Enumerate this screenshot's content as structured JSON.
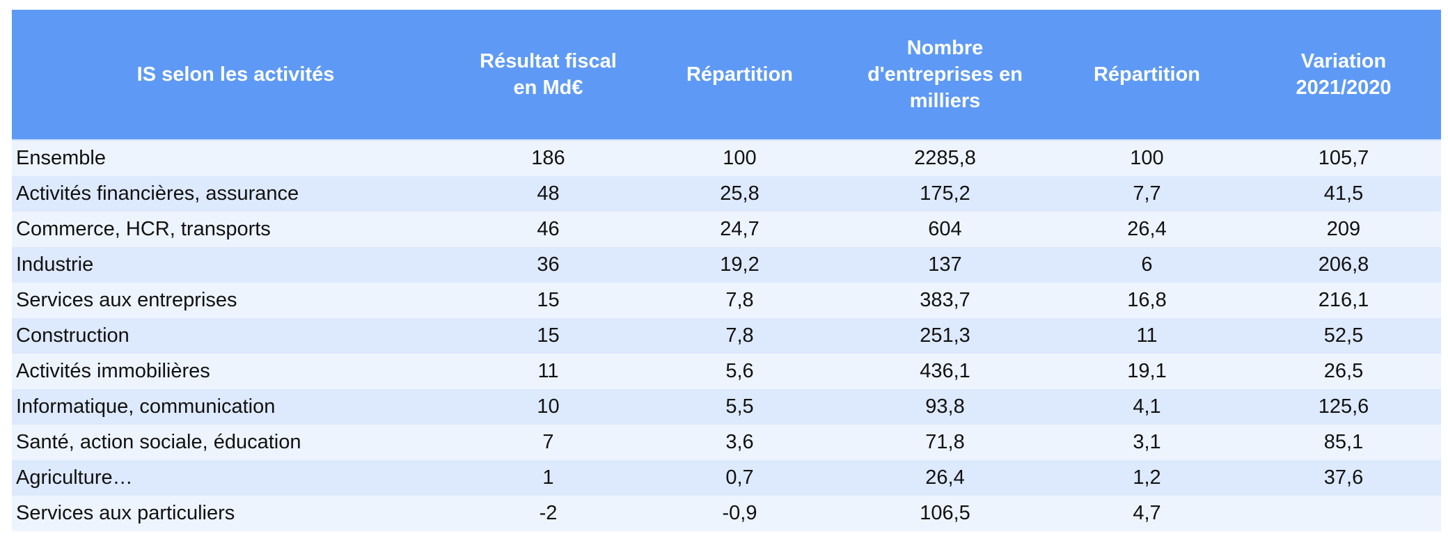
{
  "table": {
    "headers": [
      "IS selon les activités",
      "Résultat fiscal en Md€",
      "Répartition",
      "Nombre d'entreprises en milliers",
      "Répartition",
      "Variation 2021/2020"
    ],
    "rows": [
      [
        "Ensemble",
        "186",
        "100",
        "2285,8",
        "100",
        "105,7"
      ],
      [
        "Activités financières, assurance",
        "48",
        "25,8",
        "175,2",
        "7,7",
        "41,5"
      ],
      [
        "Commerce, HCR, transports",
        "46",
        "24,7",
        "604",
        "26,4",
        "209"
      ],
      [
        "Industrie",
        "36",
        "19,2",
        "137",
        "6",
        "206,8"
      ],
      [
        "Services aux entreprises",
        "15",
        "7,8",
        "383,7",
        "16,8",
        "216,1"
      ],
      [
        "Construction",
        "15",
        "7,8",
        "251,3",
        "11",
        "52,5"
      ],
      [
        "Activités immobilières",
        "11",
        "5,6",
        "436,1",
        "19,1",
        "26,5"
      ],
      [
        "Informatique, communication",
        "10",
        "5,5",
        "93,8",
        "4,1",
        "125,6"
      ],
      [
        "Santé, action sociale, éducation",
        "7",
        "3,6",
        "71,8",
        "3,1",
        "85,1"
      ],
      [
        "Agriculture…",
        "1",
        "0,7",
        "26,4",
        "1,2",
        "37,6"
      ],
      [
        "Services aux particuliers",
        "-2",
        "-0,9",
        "106,5",
        "4,7",
        ""
      ]
    ]
  },
  "colors": {
    "header": "#5e9af5",
    "row_light": "#edf4fe",
    "row_dark": "#dde9fc"
  }
}
